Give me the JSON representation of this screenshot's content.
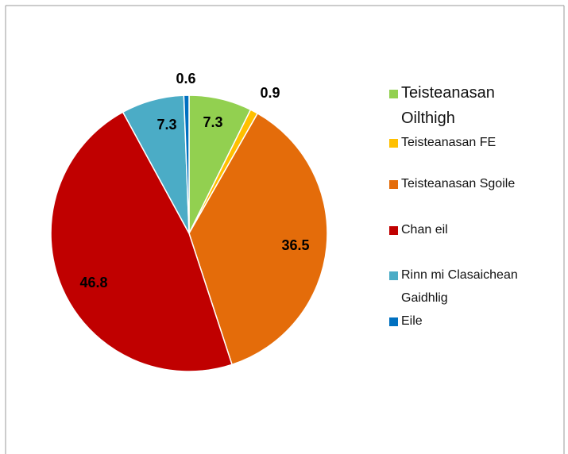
{
  "chart_data": {
    "type": "pie",
    "categories": [
      "Teisteanasan Oilthigh",
      "Teisteanasan FE",
      "Teisteanasan Sgoile",
      "Chan eil",
      "Rinn mi Clasaichean Gaidhlig",
      "Eile"
    ],
    "values": [
      7.3,
      0.9,
      36.5,
      46.8,
      7.3,
      0.6
    ],
    "colors": [
      "#92d050",
      "#ffc000",
      "#e46c0a",
      "#c00000",
      "#4bacc6",
      "#0070c0"
    ],
    "legend": "right"
  }
}
